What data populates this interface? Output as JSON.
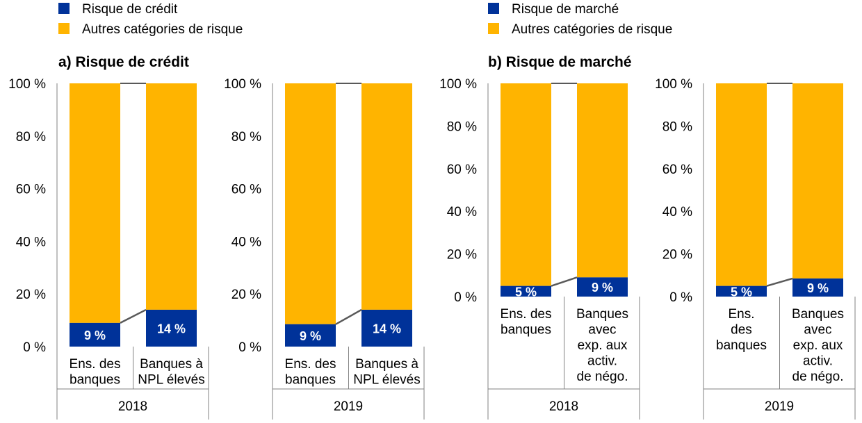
{
  "colors": {
    "primary": "#003299",
    "secondary": "#FFB400",
    "axis": "#595959",
    "connector": "#595959",
    "grid_frame": "#808080"
  },
  "panels": [
    {
      "legend": [
        "Risque de crédit",
        "Autres catégories de risque"
      ],
      "title": "a) Risque de crédit"
    },
    {
      "legend": [
        "Risque de marché",
        "Autres catégories de risque"
      ],
      "title": "b) Risque de marché"
    }
  ],
  "chart_data": [
    {
      "type": "bar",
      "stacked": true,
      "percent": true,
      "group": "2018",
      "panel": "a",
      "categories": [
        [
          "Ens. des",
          "banques"
        ],
        [
          "Banques à",
          "NPL élevés"
        ]
      ],
      "series": [
        {
          "name": "Risque de crédit",
          "values": [
            9,
            14
          ],
          "labels": [
            "9 %",
            "14 %"
          ]
        },
        {
          "name": "Autres catégories de risque",
          "values": [
            91,
            86
          ]
        }
      ],
      "yticks": [
        "0 %",
        "20 %",
        "40 %",
        "60 %",
        "80 %",
        "100 %"
      ],
      "ylim": [
        0,
        100
      ]
    },
    {
      "type": "bar",
      "stacked": true,
      "percent": true,
      "group": "2019",
      "panel": "a",
      "categories": [
        [
          "Ens. des",
          "banques"
        ],
        [
          "Banques à",
          "NPL élevés"
        ]
      ],
      "series": [
        {
          "name": "Risque de crédit",
          "values": [
            8.5,
            14
          ],
          "labels": [
            "9 %",
            "14 %"
          ]
        },
        {
          "name": "Autres catégories de risque",
          "values": [
            91.5,
            86
          ]
        }
      ],
      "yticks": [
        "0 %",
        "20 %",
        "40 %",
        "60 %",
        "80 %",
        "100 %"
      ],
      "ylim": [
        0,
        100
      ]
    },
    {
      "type": "bar",
      "stacked": true,
      "percent": true,
      "group": "2018",
      "panel": "b",
      "categories": [
        [
          "Ens. des",
          "banques"
        ],
        [
          "Banques",
          "avec",
          "exp. aux",
          "activ.",
          "de négo."
        ]
      ],
      "series": [
        {
          "name": "Risque de marché",
          "values": [
            5,
            9
          ],
          "labels": [
            "5 %",
            "9 %"
          ]
        },
        {
          "name": "Autres catégories de risque",
          "values": [
            95,
            91
          ]
        }
      ],
      "yticks": [
        "0 %",
        "20 %",
        "40 %",
        "60 %",
        "80 %",
        "100 %"
      ],
      "ylim": [
        0,
        100
      ]
    },
    {
      "type": "bar",
      "stacked": true,
      "percent": true,
      "group": "2019",
      "panel": "b",
      "categories": [
        [
          "Ens.",
          "des",
          "banques"
        ],
        [
          "Banques",
          "avec",
          "exp. aux",
          "activ.",
          "de négo."
        ]
      ],
      "series": [
        {
          "name": "Risque de marché",
          "values": [
            5,
            8.5
          ],
          "labels": [
            "5 %",
            "9 %"
          ]
        },
        {
          "name": "Autres catégories de risque",
          "values": [
            95,
            91.5
          ]
        }
      ],
      "yticks": [
        "0 %",
        "20 %",
        "40 %",
        "60 %",
        "80 %",
        "100 %"
      ],
      "ylim": [
        0,
        100
      ]
    }
  ]
}
